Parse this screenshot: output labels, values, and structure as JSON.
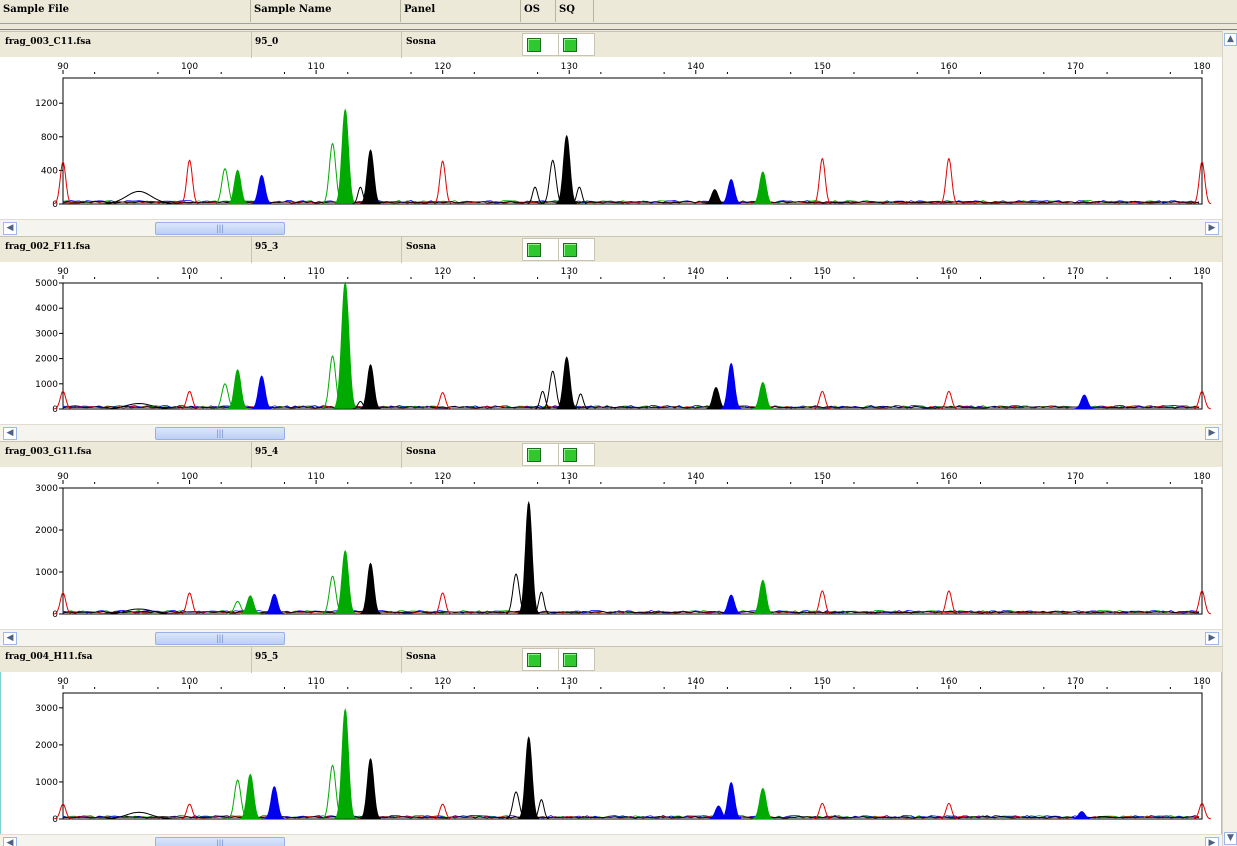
{
  "columns": {
    "sample_file": "Sample File",
    "sample_name": "Sample Name",
    "panel": "Panel",
    "os": "OS",
    "sq": "SQ"
  },
  "x_ticks": [
    90,
    100,
    110,
    120,
    130,
    140,
    150,
    160,
    170,
    180
  ],
  "scroll_thumb_glyph": "|||",
  "colors": {
    "red": "#e00000",
    "green": "#00aa00",
    "blue": "#0000ee",
    "black": "#000000",
    "header_bg": "#ece9d8",
    "status_ok": "#2fc82f"
  },
  "panels": [
    {
      "sample_file": "frag_003_C11.fsa",
      "sample_name": "95_0",
      "panel": "Sosna",
      "selected": false,
      "y_max": 1500,
      "y_ticks": [
        0,
        400,
        800,
        1200
      ],
      "peaks": [
        {
          "x": 90.0,
          "h": 500,
          "c": "red",
          "f": false,
          "w": 0.22
        },
        {
          "x": 100.0,
          "h": 520,
          "c": "red",
          "f": false,
          "w": 0.22
        },
        {
          "x": 120.0,
          "h": 510,
          "c": "red",
          "f": false,
          "w": 0.22
        },
        {
          "x": 150.0,
          "h": 540,
          "c": "red",
          "f": false,
          "w": 0.22
        },
        {
          "x": 160.0,
          "h": 540,
          "c": "red",
          "f": false,
          "w": 0.22
        },
        {
          "x": 180.0,
          "h": 500,
          "c": "red",
          "f": false,
          "w": 0.22
        },
        {
          "x": 96.0,
          "h": 150,
          "c": "black",
          "f": false,
          "w": 1.0
        },
        {
          "x": 102.8,
          "h": 420,
          "c": "green",
          "f": false,
          "w": 0.25
        },
        {
          "x": 103.8,
          "h": 400,
          "c": "green",
          "f": true,
          "w": 0.25
        },
        {
          "x": 105.7,
          "h": 340,
          "c": "blue",
          "f": true,
          "w": 0.25
        },
        {
          "x": 111.3,
          "h": 720,
          "c": "green",
          "f": false,
          "w": 0.25
        },
        {
          "x": 112.3,
          "h": 1120,
          "c": "green",
          "f": true,
          "w": 0.25
        },
        {
          "x": 113.5,
          "h": 200,
          "c": "black",
          "f": false,
          "w": 0.2
        },
        {
          "x": 114.3,
          "h": 640,
          "c": "black",
          "f": true,
          "w": 0.25
        },
        {
          "x": 127.3,
          "h": 200,
          "c": "black",
          "f": false,
          "w": 0.2
        },
        {
          "x": 128.7,
          "h": 520,
          "c": "black",
          "f": false,
          "w": 0.25
        },
        {
          "x": 129.8,
          "h": 810,
          "c": "black",
          "f": true,
          "w": 0.25
        },
        {
          "x": 130.8,
          "h": 200,
          "c": "black",
          "f": false,
          "w": 0.2
        },
        {
          "x": 141.5,
          "h": 170,
          "c": "black",
          "f": true,
          "w": 0.25
        },
        {
          "x": 142.8,
          "h": 290,
          "c": "blue",
          "f": true,
          "w": 0.25
        },
        {
          "x": 145.3,
          "h": 380,
          "c": "green",
          "f": true,
          "w": 0.25
        }
      ]
    },
    {
      "sample_file": "frag_002_F11.fsa",
      "sample_name": "95_3",
      "panel": "Sosna",
      "selected": false,
      "y_max": 5000,
      "y_ticks": [
        0,
        1000,
        2000,
        3000,
        4000,
        5000
      ],
      "peaks": [
        {
          "x": 90.0,
          "h": 700,
          "c": "red",
          "f": false,
          "w": 0.22
        },
        {
          "x": 100.0,
          "h": 700,
          "c": "red",
          "f": false,
          "w": 0.22
        },
        {
          "x": 120.0,
          "h": 650,
          "c": "red",
          "f": false,
          "w": 0.22
        },
        {
          "x": 150.0,
          "h": 700,
          "c": "red",
          "f": false,
          "w": 0.22
        },
        {
          "x": 160.0,
          "h": 700,
          "c": "red",
          "f": false,
          "w": 0.22
        },
        {
          "x": 180.0,
          "h": 700,
          "c": "red",
          "f": false,
          "w": 0.22
        },
        {
          "x": 96.0,
          "h": 220,
          "c": "black",
          "f": false,
          "w": 1.0
        },
        {
          "x": 102.8,
          "h": 1000,
          "c": "green",
          "f": false,
          "w": 0.25
        },
        {
          "x": 103.8,
          "h": 1550,
          "c": "green",
          "f": true,
          "w": 0.25
        },
        {
          "x": 105.7,
          "h": 1300,
          "c": "blue",
          "f": true,
          "w": 0.25
        },
        {
          "x": 111.3,
          "h": 2100,
          "c": "green",
          "f": false,
          "w": 0.25
        },
        {
          "x": 112.3,
          "h": 5000,
          "c": "green",
          "f": true,
          "w": 0.28
        },
        {
          "x": 113.5,
          "h": 300,
          "c": "black",
          "f": false,
          "w": 0.2
        },
        {
          "x": 114.3,
          "h": 1750,
          "c": "black",
          "f": true,
          "w": 0.25
        },
        {
          "x": 127.9,
          "h": 700,
          "c": "black",
          "f": false,
          "w": 0.2
        },
        {
          "x": 128.7,
          "h": 1500,
          "c": "black",
          "f": false,
          "w": 0.25
        },
        {
          "x": 129.8,
          "h": 2050,
          "c": "black",
          "f": true,
          "w": 0.25
        },
        {
          "x": 130.9,
          "h": 600,
          "c": "black",
          "f": false,
          "w": 0.2
        },
        {
          "x": 141.6,
          "h": 850,
          "c": "black",
          "f": true,
          "w": 0.25
        },
        {
          "x": 142.8,
          "h": 1800,
          "c": "blue",
          "f": true,
          "w": 0.25
        },
        {
          "x": 145.3,
          "h": 1050,
          "c": "green",
          "f": true,
          "w": 0.25
        },
        {
          "x": 170.7,
          "h": 550,
          "c": "blue",
          "f": true,
          "w": 0.25
        }
      ]
    },
    {
      "sample_file": "frag_003_G11.fsa",
      "sample_name": "95_4",
      "panel": "Sosna",
      "selected": false,
      "y_max": 3000,
      "y_ticks": [
        0,
        1000,
        2000,
        3000
      ],
      "peaks": [
        {
          "x": 90.0,
          "h": 500,
          "c": "red",
          "f": false,
          "w": 0.22
        },
        {
          "x": 100.0,
          "h": 500,
          "c": "red",
          "f": false,
          "w": 0.22
        },
        {
          "x": 120.0,
          "h": 500,
          "c": "red",
          "f": false,
          "w": 0.22
        },
        {
          "x": 150.0,
          "h": 550,
          "c": "red",
          "f": false,
          "w": 0.22
        },
        {
          "x": 160.0,
          "h": 550,
          "c": "red",
          "f": false,
          "w": 0.22
        },
        {
          "x": 180.0,
          "h": 550,
          "c": "red",
          "f": false,
          "w": 0.22
        },
        {
          "x": 96.0,
          "h": 120,
          "c": "black",
          "f": false,
          "w": 1.0
        },
        {
          "x": 103.8,
          "h": 300,
          "c": "green",
          "f": false,
          "w": 0.25
        },
        {
          "x": 104.8,
          "h": 430,
          "c": "green",
          "f": true,
          "w": 0.25
        },
        {
          "x": 106.7,
          "h": 470,
          "c": "blue",
          "f": true,
          "w": 0.25
        },
        {
          "x": 111.3,
          "h": 900,
          "c": "green",
          "f": false,
          "w": 0.25
        },
        {
          "x": 112.3,
          "h": 1500,
          "c": "green",
          "f": true,
          "w": 0.25
        },
        {
          "x": 114.3,
          "h": 1200,
          "c": "black",
          "f": true,
          "w": 0.25
        },
        {
          "x": 125.8,
          "h": 950,
          "c": "black",
          "f": false,
          "w": 0.25
        },
        {
          "x": 126.8,
          "h": 2650,
          "c": "black",
          "f": true,
          "w": 0.25
        },
        {
          "x": 127.8,
          "h": 520,
          "c": "black",
          "f": false,
          "w": 0.2
        },
        {
          "x": 142.8,
          "h": 450,
          "c": "blue",
          "f": true,
          "w": 0.25
        },
        {
          "x": 145.3,
          "h": 800,
          "c": "green",
          "f": true,
          "w": 0.25
        }
      ]
    },
    {
      "sample_file": "frag_004_H11.fsa",
      "sample_name": "95_5",
      "panel": "Sosna",
      "selected": true,
      "y_max": 3400,
      "y_ticks": [
        0,
        1000,
        2000,
        3000
      ],
      "peaks": [
        {
          "x": 90.0,
          "h": 400,
          "c": "red",
          "f": false,
          "w": 0.22
        },
        {
          "x": 100.0,
          "h": 400,
          "c": "red",
          "f": false,
          "w": 0.22
        },
        {
          "x": 120.0,
          "h": 400,
          "c": "red",
          "f": false,
          "w": 0.22
        },
        {
          "x": 150.0,
          "h": 420,
          "c": "red",
          "f": false,
          "w": 0.22
        },
        {
          "x": 160.0,
          "h": 420,
          "c": "red",
          "f": false,
          "w": 0.22
        },
        {
          "x": 180.0,
          "h": 420,
          "c": "red",
          "f": false,
          "w": 0.22
        },
        {
          "x": 96.0,
          "h": 180,
          "c": "black",
          "f": false,
          "w": 1.0
        },
        {
          "x": 103.8,
          "h": 1050,
          "c": "green",
          "f": false,
          "w": 0.25
        },
        {
          "x": 104.8,
          "h": 1200,
          "c": "green",
          "f": true,
          "w": 0.25
        },
        {
          "x": 106.7,
          "h": 870,
          "c": "blue",
          "f": true,
          "w": 0.25
        },
        {
          "x": 111.3,
          "h": 1450,
          "c": "green",
          "f": false,
          "w": 0.25
        },
        {
          "x": 112.3,
          "h": 2950,
          "c": "green",
          "f": true,
          "w": 0.25
        },
        {
          "x": 114.3,
          "h": 1620,
          "c": "black",
          "f": true,
          "w": 0.25
        },
        {
          "x": 125.8,
          "h": 730,
          "c": "black",
          "f": false,
          "w": 0.25
        },
        {
          "x": 126.8,
          "h": 2200,
          "c": "black",
          "f": true,
          "w": 0.25
        },
        {
          "x": 127.8,
          "h": 520,
          "c": "black",
          "f": false,
          "w": 0.2
        },
        {
          "x": 141.8,
          "h": 350,
          "c": "blue",
          "f": true,
          "w": 0.25
        },
        {
          "x": 142.8,
          "h": 980,
          "c": "blue",
          "f": true,
          "w": 0.25
        },
        {
          "x": 145.3,
          "h": 820,
          "c": "green",
          "f": true,
          "w": 0.25
        },
        {
          "x": 170.5,
          "h": 200,
          "c": "blue",
          "f": true,
          "w": 0.25
        }
      ]
    }
  ]
}
